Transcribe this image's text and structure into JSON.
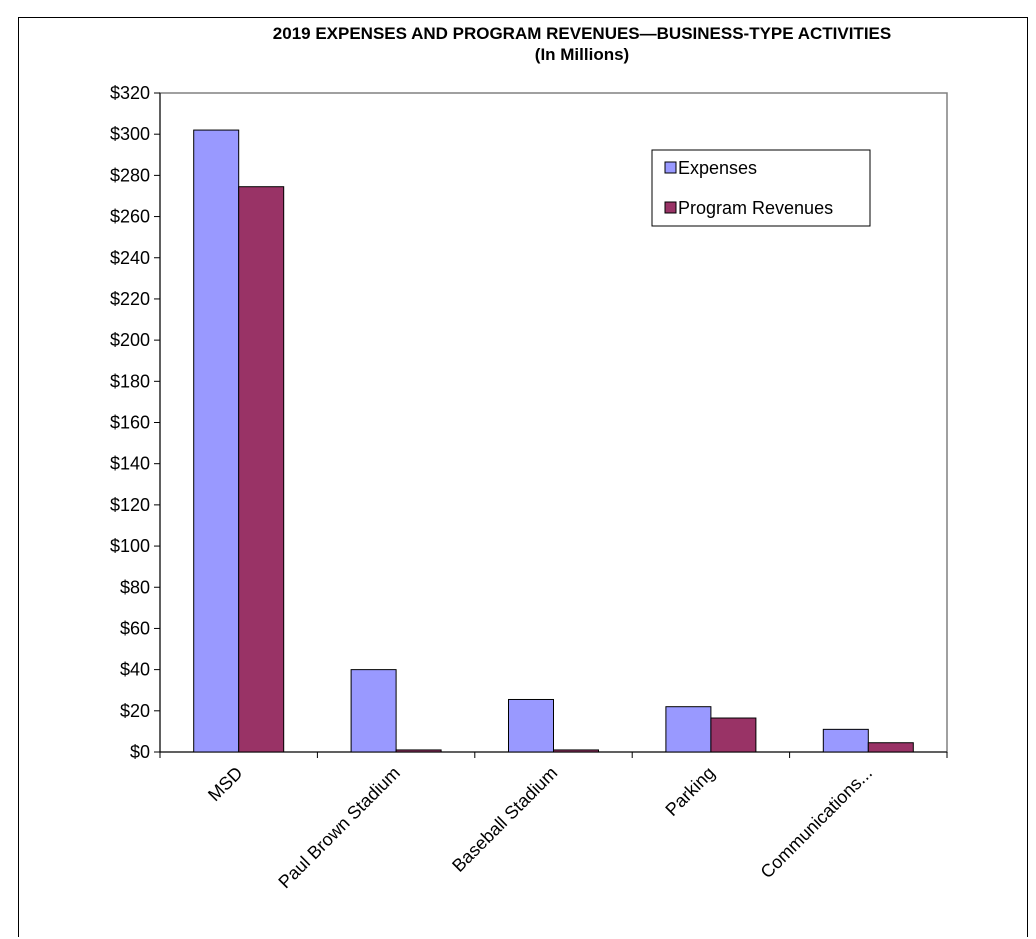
{
  "chart_data": {
    "type": "bar",
    "title": "2019 EXPENSES AND PROGRAM REVENUES—BUSINESS-TYPE ACTIVITIES",
    "subtitle": "(In Millions)",
    "xlabel": "",
    "ylabel": "",
    "categories": [
      "MSD",
      "Paul Brown Stadium",
      "Baseball Stadium",
      "Parking",
      "Communications..."
    ],
    "series": [
      {
        "name": "Expenses",
        "color": "#9999ff",
        "values": [
          302,
          40,
          25.5,
          22,
          11
        ]
      },
      {
        "name": "Program Revenues",
        "color": "#993366",
        "values": [
          274.5,
          1,
          1,
          16.5,
          4.5
        ]
      }
    ],
    "ylim": [
      0,
      320
    ],
    "ytick_step": 20,
    "ytick_labels": [
      "$0",
      "$20",
      "$40",
      "$60",
      "$80",
      "$100",
      "$120",
      "$140",
      "$160",
      "$180",
      "$200",
      "$220",
      "$240",
      "$260",
      "$280",
      "$300",
      "$320"
    ],
    "grid": false,
    "legend_position": "top-right"
  }
}
